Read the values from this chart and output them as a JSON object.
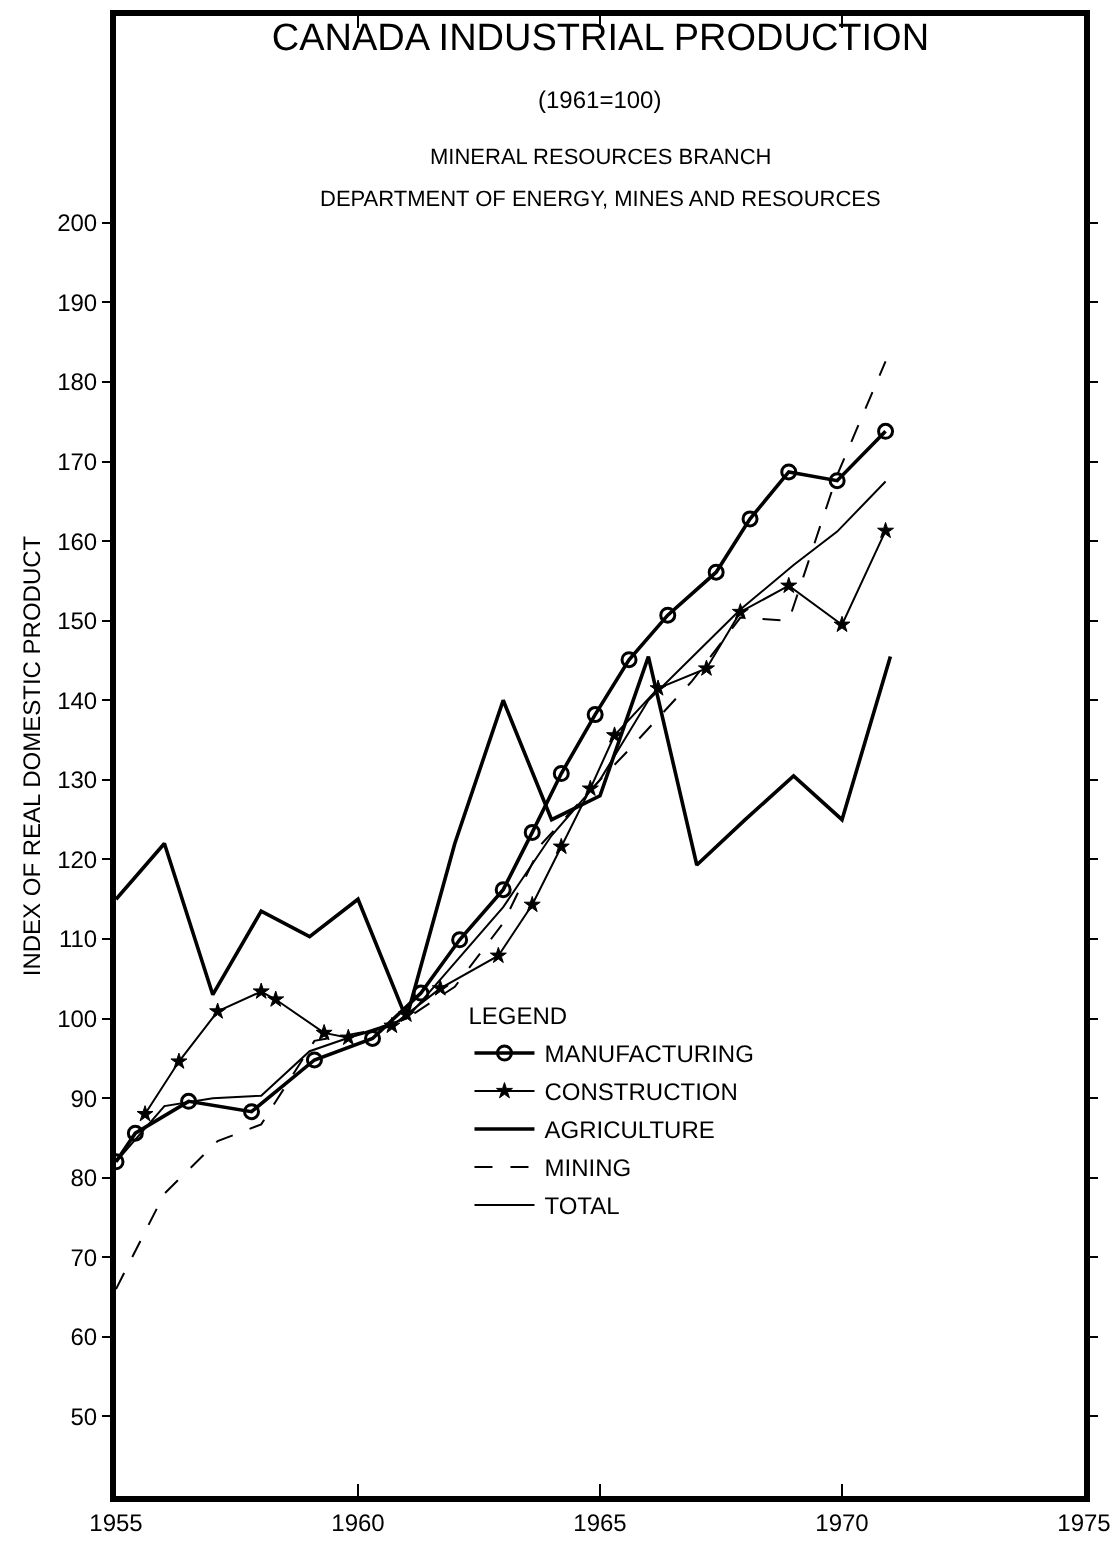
{
  "chart_data": {
    "type": "line",
    "title": "CANADA INDUSTRIAL PRODUCTION",
    "subtitle": "(1961=100)",
    "annotations": [
      "MINERAL RESOURCES BRANCH",
      "DEPARTMENT OF ENERGY, MINES AND RESOURCES"
    ],
    "ylabel": "INDEX OF REAL DOMESTIC PRODUCT",
    "legend_title": "LEGEND",
    "legend": "bottom right",
    "grid": false,
    "xlim": [
      1955,
      1975
    ],
    "xticks": [
      1955,
      1960,
      1965,
      1970,
      1975
    ],
    "ylim": [
      40,
      226
    ],
    "yticks": [
      50,
      60,
      70,
      80,
      90,
      100,
      110,
      120,
      130,
      140,
      150,
      160,
      170,
      180,
      190,
      200
    ],
    "series": [
      {
        "name": "MANUFACTURING",
        "color": "#000000",
        "marker": "circle",
        "line_style": "solid",
        "x": [
          1955,
          1955.4,
          1956.5,
          1957.8,
          1959.1,
          1960.3,
          1961.3,
          1962.1,
          1963,
          1963.6,
          1964.2,
          1964.9,
          1965.6,
          1966.4,
          1967.4,
          1968.1,
          1968.9,
          1969.9,
          1970.9
        ],
        "values": [
          82,
          85.6,
          89.6,
          88.3,
          94.8,
          97.5,
          103.2,
          109.9,
          116.2,
          123.4,
          130.8,
          138.2,
          145.1,
          150.7,
          156.1,
          162.8,
          168.7,
          167.6,
          173.8
        ]
      },
      {
        "name": "CONSTRUCTION",
        "color": "#000000",
        "marker": "star",
        "line_style": "solid",
        "x": [
          1955.6,
          1956.3,
          1957.1,
          1958,
          1958.3,
          1959.3,
          1959.8,
          1960.7,
          1961,
          1961.7,
          1962.9,
          1963.6,
          1964.2,
          1964.8,
          1965.3,
          1966.2,
          1967.2,
          1967.9,
          1968.9,
          1970,
          1970.9
        ],
        "values": [
          88,
          94.6,
          100.9,
          103.4,
          102.4,
          98.2,
          97.6,
          99.1,
          100.5,
          103.8,
          107.9,
          114.3,
          121.6,
          128.9,
          135.6,
          141.5,
          144,
          151.1,
          154.4,
          149.5,
          161.3
        ]
      },
      {
        "name": "AGRICULTURE",
        "color": "#000000",
        "marker": "none",
        "line_style": "solid",
        "x": [
          1955,
          1956,
          1957,
          1958,
          1959,
          1960,
          1961,
          1962,
          1963,
          1964,
          1965,
          1966,
          1967,
          1968,
          1969,
          1970,
          1971
        ],
        "values": [
          115,
          122,
          103,
          113.5,
          110.3,
          115,
          100,
          122,
          140,
          125,
          128,
          145.5,
          119.3,
          125,
          130.5,
          125,
          145.5
        ]
      },
      {
        "name": "MINING",
        "color": "#000000",
        "marker": "none",
        "line_style": "dashed",
        "x": [
          1955,
          1956,
          1957.1,
          1958,
          1959.1,
          1960.2,
          1961,
          1962,
          1963,
          1963.8,
          1965,
          1965.6,
          1966.9,
          1967.9,
          1968.9,
          1969.9,
          1970.9
        ],
        "values": [
          66,
          78,
          84.6,
          86.7,
          97.2,
          98.4,
          100,
          104,
          112,
          122,
          130,
          133.8,
          142.4,
          150.4,
          150,
          168.3,
          182.6
        ]
      },
      {
        "name": "TOTAL",
        "color": "#000000",
        "marker": "none",
        "line_style": "solid",
        "x": [
          1955,
          1956,
          1957,
          1958,
          1959,
          1960,
          1961,
          1962,
          1963,
          1964,
          1965,
          1966,
          1967,
          1967.9,
          1969,
          1969.9,
          1970.9
        ],
        "values": [
          82,
          89,
          90,
          90.3,
          95.9,
          98,
          100,
          107,
          114,
          123,
          130,
          140,
          146,
          151.4,
          157,
          161.2,
          167.5
        ]
      }
    ]
  }
}
